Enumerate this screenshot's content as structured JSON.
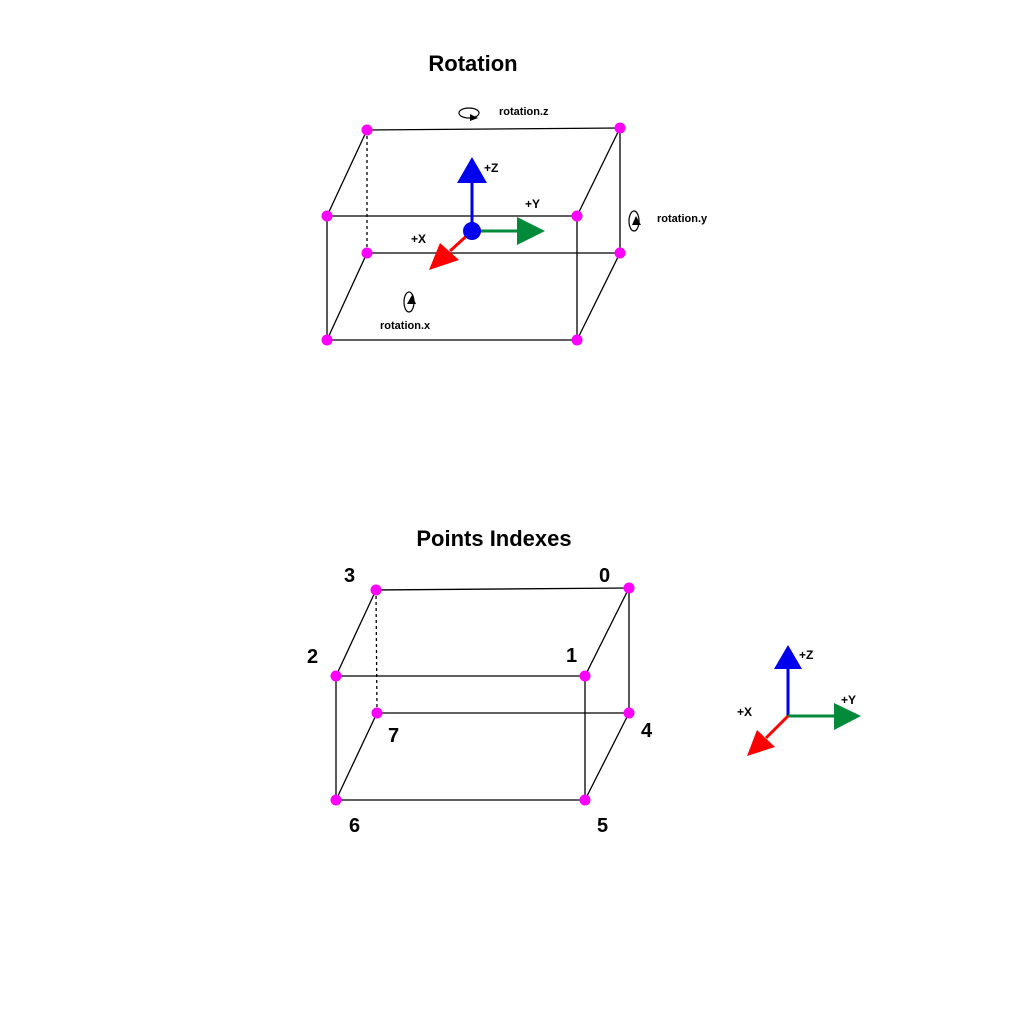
{
  "rotation_diagram": {
    "title": "Rotation",
    "axes": {
      "z": "+Z",
      "y": "+Y",
      "x": "+X"
    },
    "rotation_labels": {
      "z": "rotation.z",
      "y": "rotation.y",
      "x": "rotation.x"
    }
  },
  "indexes_diagram": {
    "title": "Points Indexes",
    "point_labels": [
      "0",
      "1",
      "2",
      "3",
      "4",
      "5",
      "6",
      "7"
    ],
    "axes": {
      "z": "+Z",
      "y": "+Y",
      "x": "+X"
    }
  },
  "colors": {
    "vertex": "#ff00ff",
    "edge": "#000000",
    "axis_x": "#ff0000",
    "axis_y": "#008a3a",
    "axis_z": "#0000ee"
  }
}
